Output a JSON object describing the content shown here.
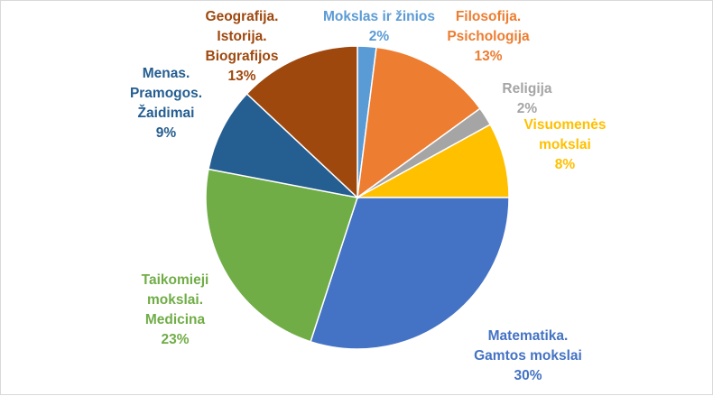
{
  "chart_data": {
    "type": "pie",
    "title": "",
    "legend": "none",
    "slices": [
      {
        "lines": [
          "Mokslas ir žinios"
        ],
        "pct": "2%",
        "value": 2,
        "color": "#5b9bd5"
      },
      {
        "lines": [
          "Filosofija.",
          "Psichologija"
        ],
        "pct": "13%",
        "value": 13,
        "color": "#ed7d31"
      },
      {
        "lines": [
          "Religija"
        ],
        "pct": "2%",
        "value": 2,
        "color": "#a5a5a5"
      },
      {
        "lines": [
          "Visuomenės",
          "mokslai"
        ],
        "pct": "8%",
        "value": 8,
        "color": "#ffc000"
      },
      {
        "lines": [
          "Matematika.",
          "Gamtos mokslai"
        ],
        "pct": "30%",
        "value": 30,
        "color": "#4472c4"
      },
      {
        "lines": [
          "Taikomieji",
          "mokslai.",
          "Medicina"
        ],
        "pct": "23%",
        "value": 23,
        "color": "#70ad47"
      },
      {
        "lines": [
          "Menas.",
          "Pramogos.",
          "Žaidimai"
        ],
        "pct": "9%",
        "value": 9,
        "color": "#255e91"
      },
      {
        "lines": [
          "Geografija.",
          "Istorija.",
          "Biografijos"
        ],
        "pct": "13%",
        "value": 13,
        "color": "#9e480e"
      }
    ]
  }
}
